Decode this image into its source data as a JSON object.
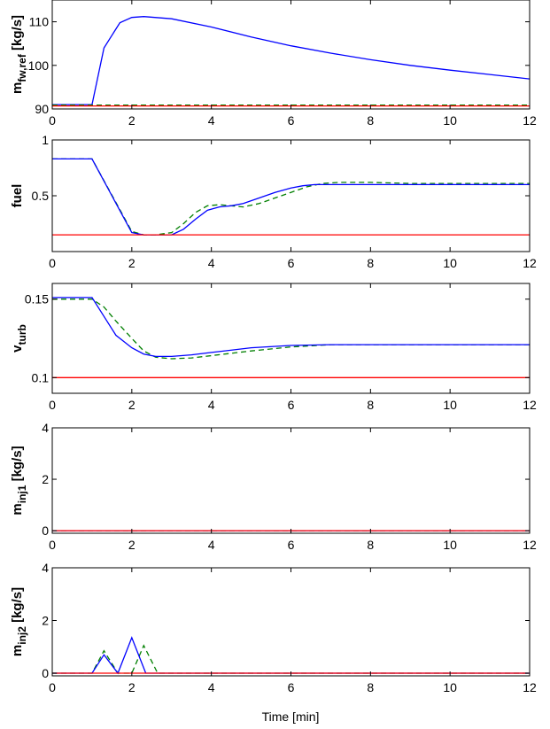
{
  "xlabel": "Time [min]",
  "colors": {
    "ref": "#ff0000",
    "actual": "#0000ff",
    "dashed": "#007f00"
  },
  "chart_data": [
    {
      "type": "line",
      "ylabel": "m",
      "ylabel_sub": "fw,ref",
      "ylabel_unit": "[kg/s]",
      "xlim": [
        0,
        12
      ],
      "ylim": [
        90,
        115
      ],
      "yticks": [
        90,
        100,
        110
      ],
      "xticks": [
        0,
        2,
        4,
        6,
        8,
        10,
        12
      ],
      "grid": false,
      "series": [
        {
          "style": "solid",
          "color": "#0000ff",
          "x": [
            0,
            1,
            1.3,
            1.7,
            2,
            2.3,
            3,
            4,
            5,
            6,
            7,
            8,
            9,
            10,
            11,
            12
          ],
          "y": [
            91,
            91,
            104,
            109.8,
            111,
            111.2,
            110.7,
            108.8,
            106.5,
            104.5,
            102.8,
            101.3,
            100,
            98.9,
            97.9,
            96.9
          ]
        },
        {
          "style": "dashed",
          "color": "#007f00",
          "x": [
            0,
            12
          ],
          "y": [
            90.9,
            90.9
          ]
        },
        {
          "style": "solid",
          "color": "#ff0000",
          "x": [
            0,
            12
          ],
          "y": [
            90.7,
            90.7
          ]
        }
      ]
    },
    {
      "type": "line",
      "ylabel": "fuel",
      "ylabel_sub": "",
      "ylabel_unit": "",
      "xlim": [
        0,
        12
      ],
      "ylim": [
        0,
        1
      ],
      "yticks": [
        0.5,
        1
      ],
      "xticks": [
        0,
        2,
        4,
        6,
        8,
        10,
        12
      ],
      "grid": false,
      "series": [
        {
          "style": "dashed",
          "color": "#007f00",
          "x": [
            0,
            1,
            2,
            2.3,
            2.6,
            3,
            3.3,
            3.6,
            3.9,
            4.2,
            4.5,
            4.8,
            5.2,
            5.6,
            6,
            6.4,
            6.8,
            7.2,
            7.6,
            8,
            9,
            10,
            11,
            12
          ],
          "y": [
            0.83,
            0.83,
            0.18,
            0.15,
            0.15,
            0.17,
            0.25,
            0.35,
            0.41,
            0.42,
            0.41,
            0.4,
            0.43,
            0.48,
            0.53,
            0.58,
            0.61,
            0.62,
            0.62,
            0.62,
            0.61,
            0.61,
            0.61,
            0.61
          ]
        },
        {
          "style": "solid",
          "color": "#0000ff",
          "x": [
            0,
            1,
            2,
            2.3,
            2.6,
            3,
            3.3,
            3.6,
            3.9,
            4.2,
            4.5,
            4.8,
            5.2,
            5.6,
            6,
            6.3,
            6.6,
            7,
            8,
            9,
            10,
            11,
            12
          ],
          "y": [
            0.83,
            0.83,
            0.17,
            0.15,
            0.15,
            0.15,
            0.2,
            0.29,
            0.37,
            0.4,
            0.41,
            0.43,
            0.48,
            0.53,
            0.57,
            0.59,
            0.6,
            0.6,
            0.6,
            0.6,
            0.6,
            0.6,
            0.6
          ]
        },
        {
          "style": "solid",
          "color": "#ff0000",
          "x": [
            0,
            12
          ],
          "y": [
            0.15,
            0.15
          ]
        }
      ]
    },
    {
      "type": "line",
      "ylabel": "v",
      "ylabel_sub": "turb",
      "ylabel_unit": "",
      "xlim": [
        0,
        12
      ],
      "ylim": [
        0.09,
        0.16
      ],
      "yticks": [
        0.1,
        0.15
      ],
      "xticks": [
        0,
        2,
        4,
        6,
        8,
        10,
        12
      ],
      "grid": false,
      "series": [
        {
          "style": "dashed",
          "color": "#007f00",
          "x": [
            0,
            1,
            1.3,
            1.6,
            2,
            2.3,
            2.6,
            3,
            3.5,
            4,
            5,
            6,
            7,
            8,
            9,
            10,
            11,
            12
          ],
          "y": [
            0.15,
            0.15,
            0.145,
            0.136,
            0.125,
            0.117,
            0.113,
            0.112,
            0.1125,
            0.114,
            0.117,
            0.1195,
            0.121,
            0.121,
            0.121,
            0.121,
            0.121,
            0.121
          ]
        },
        {
          "style": "solid",
          "color": "#0000ff",
          "x": [
            0,
            1,
            1.3,
            1.6,
            2,
            2.3,
            2.6,
            3,
            3.5,
            4,
            5,
            6,
            7,
            8,
            9,
            10,
            11,
            12
          ],
          "y": [
            0.151,
            0.151,
            0.139,
            0.127,
            0.119,
            0.115,
            0.1135,
            0.1135,
            0.1145,
            0.116,
            0.119,
            0.1205,
            0.121,
            0.121,
            0.121,
            0.121,
            0.121,
            0.121
          ]
        },
        {
          "style": "solid",
          "color": "#ff0000",
          "x": [
            0,
            12
          ],
          "y": [
            0.1,
            0.1
          ]
        }
      ]
    },
    {
      "type": "line",
      "ylabel": "m",
      "ylabel_sub": "inj1",
      "ylabel_unit": "[kg/s]",
      "xlim": [
        0,
        12
      ],
      "ylim": [
        -0.1,
        4
      ],
      "yticks": [
        0,
        2,
        4
      ],
      "xticks": [
        0,
        2,
        4,
        6,
        8,
        10,
        12
      ],
      "grid": false,
      "series": [
        {
          "style": "dashed",
          "color": "#007f00",
          "x": [
            0,
            12
          ],
          "y": [
            0,
            0
          ]
        },
        {
          "style": "solid",
          "color": "#0000ff",
          "x": [
            0,
            12
          ],
          "y": [
            0,
            0
          ]
        },
        {
          "style": "solid",
          "color": "#ff0000",
          "x": [
            0,
            12
          ],
          "y": [
            0,
            0
          ]
        }
      ]
    },
    {
      "type": "line",
      "ylabel": "m",
      "ylabel_sub": "inj2",
      "ylabel_unit": "[kg/s]",
      "xlim": [
        0,
        12
      ],
      "ylim": [
        -0.1,
        4
      ],
      "yticks": [
        0,
        2,
        4
      ],
      "xticks": [
        0,
        2,
        4,
        6,
        8,
        10,
        12
      ],
      "grid": false,
      "series": [
        {
          "style": "dashed",
          "color": "#007f00",
          "x": [
            0,
            1,
            1.3,
            1.65,
            2,
            2.3,
            2.65,
            12
          ],
          "y": [
            0,
            0,
            0.85,
            0,
            0,
            1.05,
            0,
            0
          ]
        },
        {
          "style": "solid",
          "color": "#0000ff",
          "x": [
            0,
            1,
            1.3,
            1.65,
            2,
            2.35,
            12
          ],
          "y": [
            0,
            0,
            0.7,
            0,
            1.35,
            0,
            0
          ]
        },
        {
          "style": "solid",
          "color": "#ff0000",
          "x": [
            0,
            12
          ],
          "y": [
            0,
            0
          ]
        }
      ]
    }
  ]
}
